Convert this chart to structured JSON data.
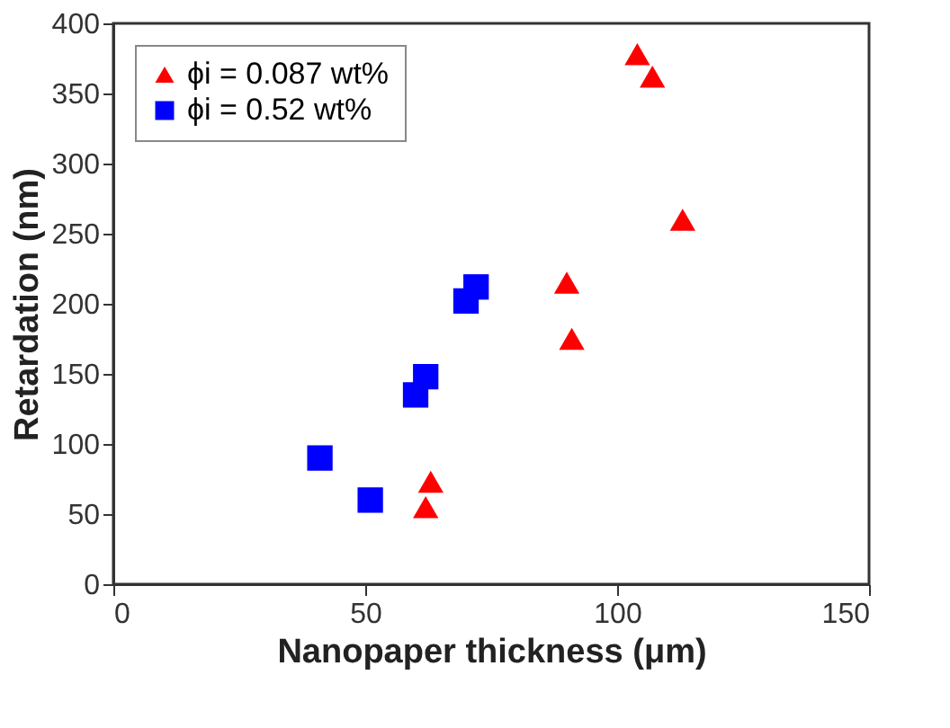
{
  "chart_data": {
    "type": "scatter",
    "xlabel": "Nanopaper thickness (μm)",
    "ylabel": "Retardation (nm)",
    "xlim": [
      0,
      150
    ],
    "xticks": [
      0,
      50,
      100,
      150
    ],
    "ylim": [
      0,
      400
    ],
    "yticks": [
      0,
      50,
      100,
      150,
      200,
      250,
      300,
      350,
      400
    ],
    "grid": false,
    "legend": "top left",
    "series": [
      {
        "name": "ϕi = 0.087 wt%",
        "color": "#ff0000",
        "marker": "triangle",
        "x": [
          104,
          107,
          113,
          90,
          91,
          63,
          62
        ],
        "values": [
          378,
          362,
          260,
          215,
          175,
          73,
          55
        ]
      },
      {
        "name": "ϕi = 0.52 wt%",
        "color": "#0000ff",
        "marker": "square",
        "x": [
          41,
          51,
          60,
          62,
          70,
          72
        ],
        "values": [
          90,
          60,
          135,
          148,
          202,
          212
        ]
      }
    ]
  }
}
